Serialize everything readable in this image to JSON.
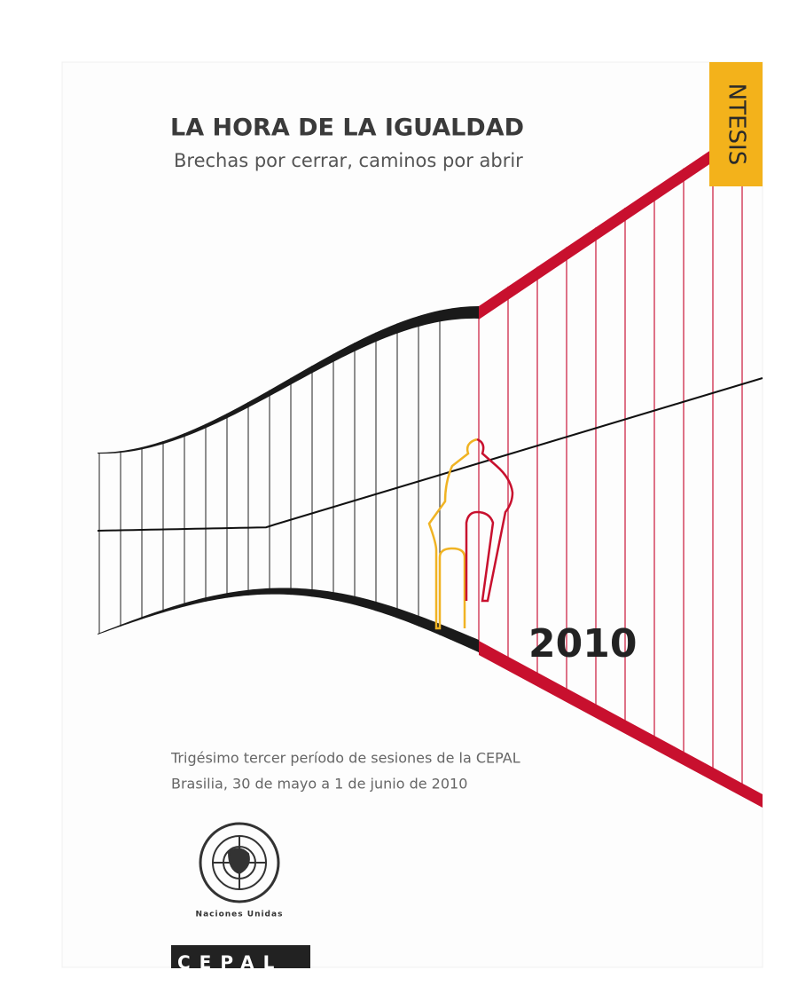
{
  "cover": {
    "title": "LA HORA DE LA IGUALDAD",
    "subtitle": "Brechas por cerrar, caminos por abrir",
    "tab": "NTESIS",
    "year": "2010",
    "session": "Trigésimo tercer período de sesiones de la CEPAL",
    "place_date": "Brasilia, 30 de mayo a 1 de junio de 2010",
    "un_label": "Naciones Unidas",
    "publisher": "CEPAL"
  }
}
